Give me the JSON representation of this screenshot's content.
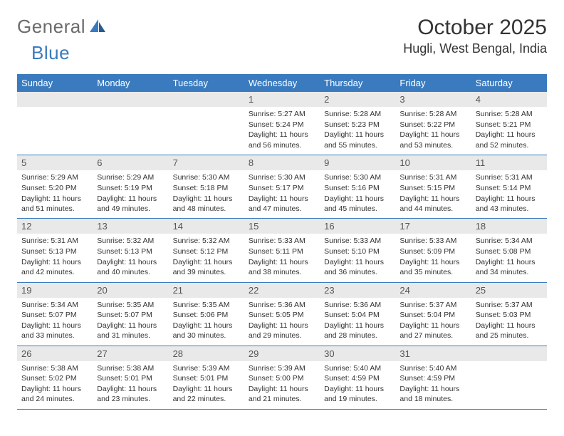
{
  "logo": {
    "text_general": "General",
    "text_blue": "Blue"
  },
  "title": {
    "month": "October 2025",
    "location": "Hugli, West Bengal, India"
  },
  "colors": {
    "header_bg": "#3a7bbf",
    "header_fg": "#ffffff",
    "daynum_bg": "#e9e9e9",
    "border": "#3a7bbf",
    "logo_gray": "#6b6b6b",
    "logo_blue": "#3a7bbf"
  },
  "day_names": [
    "Sunday",
    "Monday",
    "Tuesday",
    "Wednesday",
    "Thursday",
    "Friday",
    "Saturday"
  ],
  "weeks": [
    [
      null,
      null,
      null,
      {
        "n": "1",
        "sr": "Sunrise: 5:27 AM",
        "ss": "Sunset: 5:24 PM",
        "dl": "Daylight: 11 hours and 56 minutes."
      },
      {
        "n": "2",
        "sr": "Sunrise: 5:28 AM",
        "ss": "Sunset: 5:23 PM",
        "dl": "Daylight: 11 hours and 55 minutes."
      },
      {
        "n": "3",
        "sr": "Sunrise: 5:28 AM",
        "ss": "Sunset: 5:22 PM",
        "dl": "Daylight: 11 hours and 53 minutes."
      },
      {
        "n": "4",
        "sr": "Sunrise: 5:28 AM",
        "ss": "Sunset: 5:21 PM",
        "dl": "Daylight: 11 hours and 52 minutes."
      }
    ],
    [
      {
        "n": "5",
        "sr": "Sunrise: 5:29 AM",
        "ss": "Sunset: 5:20 PM",
        "dl": "Daylight: 11 hours and 51 minutes."
      },
      {
        "n": "6",
        "sr": "Sunrise: 5:29 AM",
        "ss": "Sunset: 5:19 PM",
        "dl": "Daylight: 11 hours and 49 minutes."
      },
      {
        "n": "7",
        "sr": "Sunrise: 5:30 AM",
        "ss": "Sunset: 5:18 PM",
        "dl": "Daylight: 11 hours and 48 minutes."
      },
      {
        "n": "8",
        "sr": "Sunrise: 5:30 AM",
        "ss": "Sunset: 5:17 PM",
        "dl": "Daylight: 11 hours and 47 minutes."
      },
      {
        "n": "9",
        "sr": "Sunrise: 5:30 AM",
        "ss": "Sunset: 5:16 PM",
        "dl": "Daylight: 11 hours and 45 minutes."
      },
      {
        "n": "10",
        "sr": "Sunrise: 5:31 AM",
        "ss": "Sunset: 5:15 PM",
        "dl": "Daylight: 11 hours and 44 minutes."
      },
      {
        "n": "11",
        "sr": "Sunrise: 5:31 AM",
        "ss": "Sunset: 5:14 PM",
        "dl": "Daylight: 11 hours and 43 minutes."
      }
    ],
    [
      {
        "n": "12",
        "sr": "Sunrise: 5:31 AM",
        "ss": "Sunset: 5:13 PM",
        "dl": "Daylight: 11 hours and 42 minutes."
      },
      {
        "n": "13",
        "sr": "Sunrise: 5:32 AM",
        "ss": "Sunset: 5:13 PM",
        "dl": "Daylight: 11 hours and 40 minutes."
      },
      {
        "n": "14",
        "sr": "Sunrise: 5:32 AM",
        "ss": "Sunset: 5:12 PM",
        "dl": "Daylight: 11 hours and 39 minutes."
      },
      {
        "n": "15",
        "sr": "Sunrise: 5:33 AM",
        "ss": "Sunset: 5:11 PM",
        "dl": "Daylight: 11 hours and 38 minutes."
      },
      {
        "n": "16",
        "sr": "Sunrise: 5:33 AM",
        "ss": "Sunset: 5:10 PM",
        "dl": "Daylight: 11 hours and 36 minutes."
      },
      {
        "n": "17",
        "sr": "Sunrise: 5:33 AM",
        "ss": "Sunset: 5:09 PM",
        "dl": "Daylight: 11 hours and 35 minutes."
      },
      {
        "n": "18",
        "sr": "Sunrise: 5:34 AM",
        "ss": "Sunset: 5:08 PM",
        "dl": "Daylight: 11 hours and 34 minutes."
      }
    ],
    [
      {
        "n": "19",
        "sr": "Sunrise: 5:34 AM",
        "ss": "Sunset: 5:07 PM",
        "dl": "Daylight: 11 hours and 33 minutes."
      },
      {
        "n": "20",
        "sr": "Sunrise: 5:35 AM",
        "ss": "Sunset: 5:07 PM",
        "dl": "Daylight: 11 hours and 31 minutes."
      },
      {
        "n": "21",
        "sr": "Sunrise: 5:35 AM",
        "ss": "Sunset: 5:06 PM",
        "dl": "Daylight: 11 hours and 30 minutes."
      },
      {
        "n": "22",
        "sr": "Sunrise: 5:36 AM",
        "ss": "Sunset: 5:05 PM",
        "dl": "Daylight: 11 hours and 29 minutes."
      },
      {
        "n": "23",
        "sr": "Sunrise: 5:36 AM",
        "ss": "Sunset: 5:04 PM",
        "dl": "Daylight: 11 hours and 28 minutes."
      },
      {
        "n": "24",
        "sr": "Sunrise: 5:37 AM",
        "ss": "Sunset: 5:04 PM",
        "dl": "Daylight: 11 hours and 27 minutes."
      },
      {
        "n": "25",
        "sr": "Sunrise: 5:37 AM",
        "ss": "Sunset: 5:03 PM",
        "dl": "Daylight: 11 hours and 25 minutes."
      }
    ],
    [
      {
        "n": "26",
        "sr": "Sunrise: 5:38 AM",
        "ss": "Sunset: 5:02 PM",
        "dl": "Daylight: 11 hours and 24 minutes."
      },
      {
        "n": "27",
        "sr": "Sunrise: 5:38 AM",
        "ss": "Sunset: 5:01 PM",
        "dl": "Daylight: 11 hours and 23 minutes."
      },
      {
        "n": "28",
        "sr": "Sunrise: 5:39 AM",
        "ss": "Sunset: 5:01 PM",
        "dl": "Daylight: 11 hours and 22 minutes."
      },
      {
        "n": "29",
        "sr": "Sunrise: 5:39 AM",
        "ss": "Sunset: 5:00 PM",
        "dl": "Daylight: 11 hours and 21 minutes."
      },
      {
        "n": "30",
        "sr": "Sunrise: 5:40 AM",
        "ss": "Sunset: 4:59 PM",
        "dl": "Daylight: 11 hours and 19 minutes."
      },
      {
        "n": "31",
        "sr": "Sunrise: 5:40 AM",
        "ss": "Sunset: 4:59 PM",
        "dl": "Daylight: 11 hours and 18 minutes."
      },
      null
    ]
  ]
}
